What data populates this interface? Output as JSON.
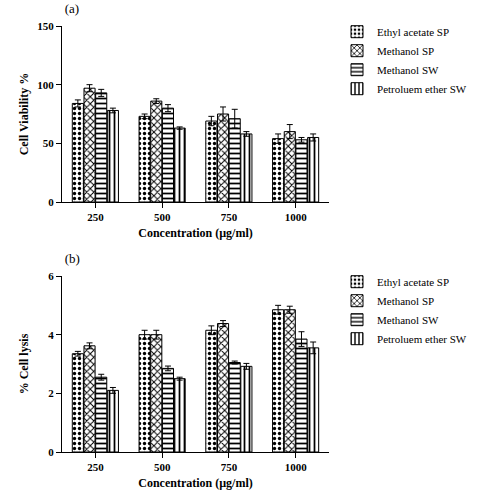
{
  "chart_data": [
    {
      "type": "bar",
      "title": "(a)",
      "x_label": "Concentration (µg/ml)",
      "y_label": "Cell Viability %",
      "categories": [
        "250",
        "500",
        "750",
        "1000"
      ],
      "ylim": [
        0,
        150
      ],
      "yticks": [
        0,
        50,
        100,
        150
      ],
      "grid": false,
      "legend": "right",
      "series": [
        {
          "name": "Ethyl acetate SP",
          "color": "#000000",
          "values": [
            84,
            73,
            69,
            54
          ],
          "errors": [
            3,
            2,
            4,
            4
          ]
        },
        {
          "name": "Methanol SP",
          "color": "#000000",
          "values": [
            97,
            86,
            75,
            60
          ],
          "errors": [
            3,
            2,
            6,
            6
          ]
        },
        {
          "name": "Methanol SW",
          "color": "#000000",
          "values": [
            93,
            80,
            71,
            53
          ],
          "errors": [
            3,
            3,
            8,
            2
          ]
        },
        {
          "name": "Petroluem ether SW",
          "color": "#000000",
          "values": [
            78,
            63,
            58,
            55
          ],
          "errors": [
            2,
            1,
            2,
            3
          ]
        }
      ]
    },
    {
      "type": "bar",
      "title": "(b)",
      "x_label": "Concentration (µg/ml)",
      "y_label": "% Cell lysis",
      "categories": [
        "250",
        "500",
        "750",
        "1000"
      ],
      "ylim": [
        0,
        6
      ],
      "yticks": [
        0,
        2,
        4,
        6
      ],
      "grid": false,
      "legend": "right",
      "series": [
        {
          "name": "Ethyl acetate SP",
          "color": "#000000",
          "values": [
            3.35,
            4.0,
            4.15,
            4.85
          ],
          "errors": [
            0.08,
            0.15,
            0.15,
            0.15
          ]
        },
        {
          "name": "Methanol SP",
          "color": "#000000",
          "values": [
            3.62,
            4.0,
            4.38,
            4.85
          ],
          "errors": [
            0.1,
            0.15,
            0.1,
            0.12
          ]
        },
        {
          "name": "Methanol SW",
          "color": "#000000",
          "values": [
            2.55,
            2.85,
            3.05,
            3.85
          ],
          "errors": [
            0.1,
            0.08,
            0.05,
            0.25
          ]
        },
        {
          "name": "Petroluem ether SW",
          "color": "#000000",
          "values": [
            2.1,
            2.5,
            2.92,
            3.55
          ],
          "errors": [
            0.1,
            0.05,
            0.1,
            0.2
          ]
        }
      ]
    }
  ]
}
